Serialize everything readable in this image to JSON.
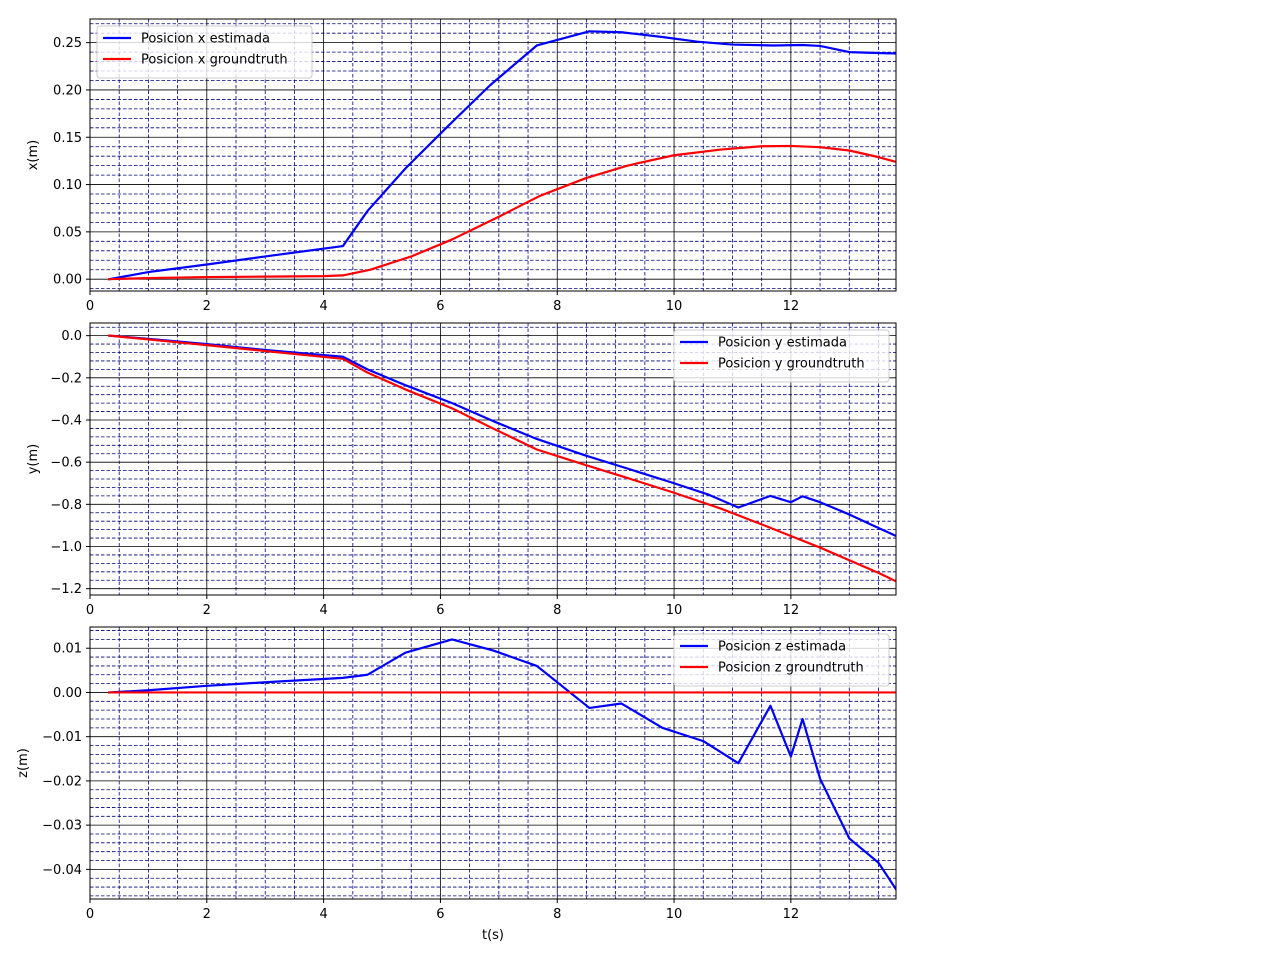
{
  "chart_data": [
    {
      "type": "line",
      "xlabel": "",
      "ylabel": "x(m)",
      "xlim": [
        0,
        13.8
      ],
      "ylim": [
        -0.0125,
        0.275
      ],
      "xticks": [
        0,
        2,
        4,
        6,
        8,
        10,
        12
      ],
      "xtick_labels": [
        "0",
        "2",
        "4",
        "6",
        "8",
        "10",
        "12"
      ],
      "yticks": [
        0.0,
        0.05,
        0.1,
        0.15,
        0.2,
        0.25
      ],
      "ytick_labels": [
        "0.00",
        "0.05",
        "0.10",
        "0.15",
        "0.20",
        "0.25"
      ],
      "major_grid": true,
      "minor_grid": true,
      "legend_position": "upper-left",
      "series": [
        {
          "name": "Posicion x estimada",
          "color": "#0000ff",
          "x": [
            0.33,
            1.0,
            2.0,
            3.0,
            4.33,
            4.75,
            5.4,
            6.1,
            6.85,
            7.65,
            8.55,
            9.1,
            9.8,
            10.4,
            11.0,
            11.7,
            12.2,
            12.5,
            13.0,
            13.8
          ],
          "y": [
            0.0,
            0.0075,
            0.0155,
            0.024,
            0.035,
            0.072,
            0.117,
            0.16,
            0.205,
            0.247,
            0.262,
            0.261,
            0.256,
            0.251,
            0.248,
            0.247,
            0.2475,
            0.2465,
            0.24,
            0.2385
          ]
        },
        {
          "name": "Posicion x groundtruth",
          "color": "#ff0000",
          "x": [
            0.33,
            1.0,
            2.0,
            3.0,
            4.0,
            4.33,
            4.8,
            5.5,
            6.2,
            7.0,
            7.7,
            8.5,
            9.2,
            10.0,
            10.8,
            11.5,
            12.0,
            12.5,
            13.0,
            13.5,
            13.8
          ],
          "y": [
            0.0,
            0.0012,
            0.0022,
            0.0027,
            0.0032,
            0.004,
            0.01,
            0.024,
            0.042,
            0.066,
            0.088,
            0.107,
            0.12,
            0.131,
            0.137,
            0.1405,
            0.1408,
            0.1395,
            0.136,
            0.129,
            0.124
          ]
        }
      ]
    },
    {
      "type": "line",
      "xlabel": "",
      "ylabel": "y(m)",
      "xlim": [
        0,
        13.8
      ],
      "ylim": [
        -1.23,
        0.06
      ],
      "xticks": [
        0,
        2,
        4,
        6,
        8,
        10,
        12
      ],
      "xtick_labels": [
        "0",
        "2",
        "4",
        "6",
        "8",
        "10",
        "12"
      ],
      "yticks": [
        0.0,
        -0.2,
        -0.4,
        -0.6,
        -0.8,
        -1.0,
        -1.2
      ],
      "ytick_labels": [
        "0.0",
        "−0.2",
        "−0.4",
        "−0.6",
        "−0.8",
        "−1.0",
        "−1.2"
      ],
      "major_grid": true,
      "minor_grid": true,
      "legend_position": "upper-right",
      "series": [
        {
          "name": "Posicion y estimada",
          "color": "#0000ff",
          "x": [
            0.33,
            1.0,
            2.0,
            3.0,
            4.33,
            4.75,
            5.4,
            6.2,
            6.9,
            7.65,
            8.5,
            9.2,
            10.0,
            10.6,
            11.1,
            11.65,
            12.0,
            12.2,
            12.5,
            13.0,
            13.5,
            13.8
          ],
          "y": [
            0.0,
            -0.015,
            -0.04,
            -0.068,
            -0.1,
            -0.16,
            -0.235,
            -0.32,
            -0.405,
            -0.49,
            -0.57,
            -0.63,
            -0.7,
            -0.755,
            -0.815,
            -0.76,
            -0.79,
            -0.762,
            -0.79,
            -0.848,
            -0.912,
            -0.95
          ]
        },
        {
          "name": "Posicion y groundtruth",
          "color": "#ff0000",
          "x": [
            0.33,
            1.0,
            2.0,
            3.0,
            4.33,
            4.75,
            5.4,
            6.2,
            6.9,
            7.65,
            8.5,
            9.2,
            10.0,
            10.8,
            11.5,
            12.0,
            12.5,
            13.0,
            13.5,
            13.8
          ],
          "y": [
            0.0,
            -0.018,
            -0.045,
            -0.073,
            -0.11,
            -0.175,
            -0.255,
            -0.345,
            -0.44,
            -0.54,
            -0.615,
            -0.675,
            -0.745,
            -0.82,
            -0.895,
            -0.95,
            -1.005,
            -1.065,
            -1.125,
            -1.165
          ]
        }
      ]
    },
    {
      "type": "line",
      "xlabel": "t(s)",
      "ylabel": "z(m)",
      "xlim": [
        0,
        13.8
      ],
      "ylim": [
        -0.0467,
        0.0148
      ],
      "xticks": [
        0,
        2,
        4,
        6,
        8,
        10,
        12
      ],
      "xtick_labels": [
        "0",
        "2",
        "4",
        "6",
        "8",
        "10",
        "12"
      ],
      "yticks": [
        0.01,
        0.0,
        -0.01,
        -0.02,
        -0.03,
        -0.04
      ],
      "ytick_labels": [
        "0.01",
        "0.00",
        "−0.01",
        "−0.02",
        "−0.03",
        "−0.04"
      ],
      "major_grid": true,
      "minor_grid": true,
      "legend_position": "upper-right",
      "series": [
        {
          "name": "Posicion z estimada",
          "color": "#0000ff",
          "x": [
            0.33,
            1.0,
            2.0,
            3.0,
            4.33,
            4.75,
            5.4,
            6.2,
            6.9,
            7.65,
            8.55,
            9.1,
            9.8,
            10.5,
            11.1,
            11.65,
            12.0,
            12.2,
            12.5,
            13.0,
            13.5,
            13.8
          ],
          "y": [
            0.0,
            0.0005,
            0.0015,
            0.0023,
            0.0033,
            0.004,
            0.009,
            0.012,
            0.0095,
            0.006,
            -0.0035,
            -0.0025,
            -0.008,
            -0.011,
            -0.016,
            -0.003,
            -0.0145,
            -0.006,
            -0.0195,
            -0.033,
            -0.0385,
            -0.0445
          ]
        },
        {
          "name": "Posicion z groundtruth",
          "color": "#ff0000",
          "x": [
            0.33,
            13.8
          ],
          "y": [
            0.0,
            0.0
          ]
        }
      ]
    }
  ]
}
